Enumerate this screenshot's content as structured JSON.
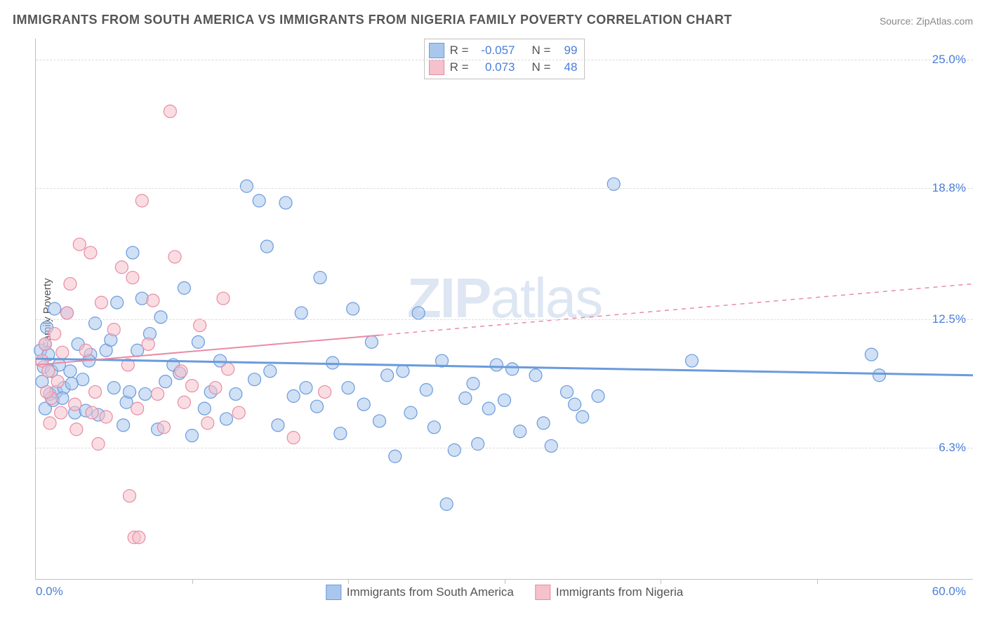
{
  "title": "IMMIGRANTS FROM SOUTH AMERICA VS IMMIGRANTS FROM NIGERIA FAMILY POVERTY CORRELATION CHART",
  "source": "Source: ZipAtlas.com",
  "watermark_bold": "ZIP",
  "watermark_rest": "atlas",
  "chart": {
    "type": "scatter-correlation",
    "ylabel": "Family Poverty",
    "xlim": [
      0,
      60
    ],
    "ylim": [
      0,
      26
    ],
    "x_min_label": "0.0%",
    "x_max_label": "60.0%",
    "y_gridlines": [
      {
        "value": 6.3,
        "label": "6.3%"
      },
      {
        "value": 12.5,
        "label": "12.5%"
      },
      {
        "value": 18.8,
        "label": "18.8%"
      },
      {
        "value": 25.0,
        "label": "25.0%"
      }
    ],
    "x_ticks": [
      10,
      20,
      30,
      40,
      50
    ],
    "background_color": "#ffffff",
    "grid_color": "#dcdcdc",
    "axis_color": "#c0c0c0",
    "label_color": "#4a7fd8",
    "marker_radius": 9,
    "marker_opacity": 0.55,
    "series": [
      {
        "id": "south_america",
        "label": "Immigrants from South America",
        "fill_color": "#a9c6ec",
        "stroke_color": "#6a9bdc",
        "R_label": "R =",
        "R_value": "-0.057",
        "N_label": "N =",
        "N_value": "99",
        "trend": {
          "x1": 0,
          "y1": 10.6,
          "x2": 60,
          "y2": 9.8,
          "solid_until": 60,
          "width": 3
        },
        "points": [
          [
            0.3,
            11.0
          ],
          [
            0.4,
            9.5
          ],
          [
            0.5,
            10.2
          ],
          [
            0.6,
            8.2
          ],
          [
            0.7,
            12.1
          ],
          [
            0.8,
            10.8
          ],
          [
            0.9,
            8.9
          ],
          [
            1.0,
            10.0
          ],
          [
            1.1,
            8.6
          ],
          [
            1.2,
            13.0
          ],
          [
            1.3,
            9.0
          ],
          [
            1.5,
            10.3
          ],
          [
            1.8,
            9.2
          ],
          [
            2.0,
            12.8
          ],
          [
            2.2,
            10.0
          ],
          [
            2.5,
            8.0
          ],
          [
            2.7,
            11.3
          ],
          [
            3.0,
            9.6
          ],
          [
            3.2,
            8.1
          ],
          [
            3.5,
            10.8
          ],
          [
            3.8,
            12.3
          ],
          [
            4.0,
            7.9
          ],
          [
            4.5,
            11.0
          ],
          [
            5.0,
            9.2
          ],
          [
            5.2,
            13.3
          ],
          [
            5.8,
            8.5
          ],
          [
            6.2,
            15.7
          ],
          [
            6.5,
            11.0
          ],
          [
            6.8,
            13.5
          ],
          [
            7.0,
            8.9
          ],
          [
            7.3,
            11.8
          ],
          [
            7.8,
            7.2
          ],
          [
            8.0,
            12.6
          ],
          [
            8.3,
            9.5
          ],
          [
            8.8,
            10.3
          ],
          [
            9.2,
            9.9
          ],
          [
            9.5,
            14.0
          ],
          [
            10.0,
            6.9
          ],
          [
            10.4,
            11.4
          ],
          [
            10.8,
            8.2
          ],
          [
            11.2,
            9.0
          ],
          [
            11.8,
            10.5
          ],
          [
            12.2,
            7.7
          ],
          [
            12.8,
            8.9
          ],
          [
            13.5,
            18.9
          ],
          [
            14.0,
            9.6
          ],
          [
            14.3,
            18.2
          ],
          [
            14.8,
            16.0
          ],
          [
            15.0,
            10.0
          ],
          [
            15.5,
            7.4
          ],
          [
            16.0,
            18.1
          ],
          [
            16.5,
            8.8
          ],
          [
            17.0,
            12.8
          ],
          [
            17.3,
            9.2
          ],
          [
            18.0,
            8.3
          ],
          [
            18.2,
            14.5
          ],
          [
            19.0,
            10.4
          ],
          [
            19.5,
            7.0
          ],
          [
            20.0,
            9.2
          ],
          [
            20.3,
            13.0
          ],
          [
            21.0,
            8.4
          ],
          [
            21.5,
            11.4
          ],
          [
            22.0,
            7.6
          ],
          [
            22.5,
            9.8
          ],
          [
            23.0,
            5.9
          ],
          [
            23.5,
            10.0
          ],
          [
            24.0,
            8.0
          ],
          [
            24.5,
            12.8
          ],
          [
            25.0,
            9.1
          ],
          [
            25.5,
            7.3
          ],
          [
            26.0,
            10.5
          ],
          [
            26.3,
            3.6
          ],
          [
            26.8,
            6.2
          ],
          [
            27.5,
            8.7
          ],
          [
            28.0,
            9.4
          ],
          [
            28.3,
            6.5
          ],
          [
            29.0,
            8.2
          ],
          [
            29.5,
            10.3
          ],
          [
            30.0,
            8.6
          ],
          [
            30.5,
            10.1
          ],
          [
            31.0,
            7.1
          ],
          [
            32.0,
            9.8
          ],
          [
            32.5,
            7.5
          ],
          [
            33.0,
            6.4
          ],
          [
            34.0,
            9.0
          ],
          [
            34.5,
            8.4
          ],
          [
            35.0,
            7.8
          ],
          [
            36.0,
            8.8
          ],
          [
            37.0,
            19.0
          ],
          [
            42.0,
            10.5
          ],
          [
            53.5,
            10.8
          ],
          [
            54.0,
            9.8
          ],
          [
            6.0,
            9.0
          ],
          [
            3.4,
            10.5
          ],
          [
            4.8,
            11.5
          ],
          [
            5.6,
            7.4
          ],
          [
            2.3,
            9.4
          ],
          [
            1.7,
            8.7
          ],
          [
            0.6,
            11.3
          ]
        ]
      },
      {
        "id": "nigeria",
        "label": "Immigrants from Nigeria",
        "fill_color": "#f5c1cc",
        "stroke_color": "#e88ca3",
        "R_label": "R =",
        "R_value": "0.073",
        "N_label": "N =",
        "N_value": "48",
        "trend": {
          "x1": 0,
          "y1": 10.3,
          "x2": 60,
          "y2": 14.2,
          "solid_until": 22,
          "width": 2
        },
        "points": [
          [
            0.4,
            10.5
          ],
          [
            0.6,
            11.3
          ],
          [
            0.8,
            10.0
          ],
          [
            1.0,
            8.7
          ],
          [
            1.2,
            11.8
          ],
          [
            1.4,
            9.5
          ],
          [
            1.7,
            10.9
          ],
          [
            2.0,
            12.8
          ],
          [
            2.2,
            14.2
          ],
          [
            2.5,
            8.4
          ],
          [
            2.8,
            16.1
          ],
          [
            3.2,
            11.0
          ],
          [
            3.5,
            15.7
          ],
          [
            3.8,
            9.0
          ],
          [
            4.2,
            13.3
          ],
          [
            4.5,
            7.8
          ],
          [
            5.0,
            12.0
          ],
          [
            5.5,
            15.0
          ],
          [
            5.9,
            10.3
          ],
          [
            6.2,
            14.5
          ],
          [
            6.5,
            8.2
          ],
          [
            6.8,
            18.2
          ],
          [
            7.2,
            11.3
          ],
          [
            7.5,
            13.4
          ],
          [
            7.8,
            8.9
          ],
          [
            8.2,
            7.3
          ],
          [
            8.6,
            22.5
          ],
          [
            8.9,
            15.5
          ],
          [
            9.3,
            10.0
          ],
          [
            9.5,
            8.5
          ],
          [
            10.0,
            9.3
          ],
          [
            10.5,
            12.2
          ],
          [
            11.0,
            7.5
          ],
          [
            11.5,
            9.2
          ],
          [
            12.0,
            13.5
          ],
          [
            12.3,
            10.1
          ],
          [
            13.0,
            8.0
          ],
          [
            6.0,
            4.0
          ],
          [
            6.3,
            2.0
          ],
          [
            6.6,
            2.0
          ],
          [
            4.0,
            6.5
          ],
          [
            3.6,
            8.0
          ],
          [
            2.6,
            7.2
          ],
          [
            1.6,
            8.0
          ],
          [
            0.9,
            7.5
          ],
          [
            0.7,
            9.0
          ],
          [
            16.5,
            6.8
          ],
          [
            18.5,
            9.0
          ]
        ]
      }
    ]
  }
}
